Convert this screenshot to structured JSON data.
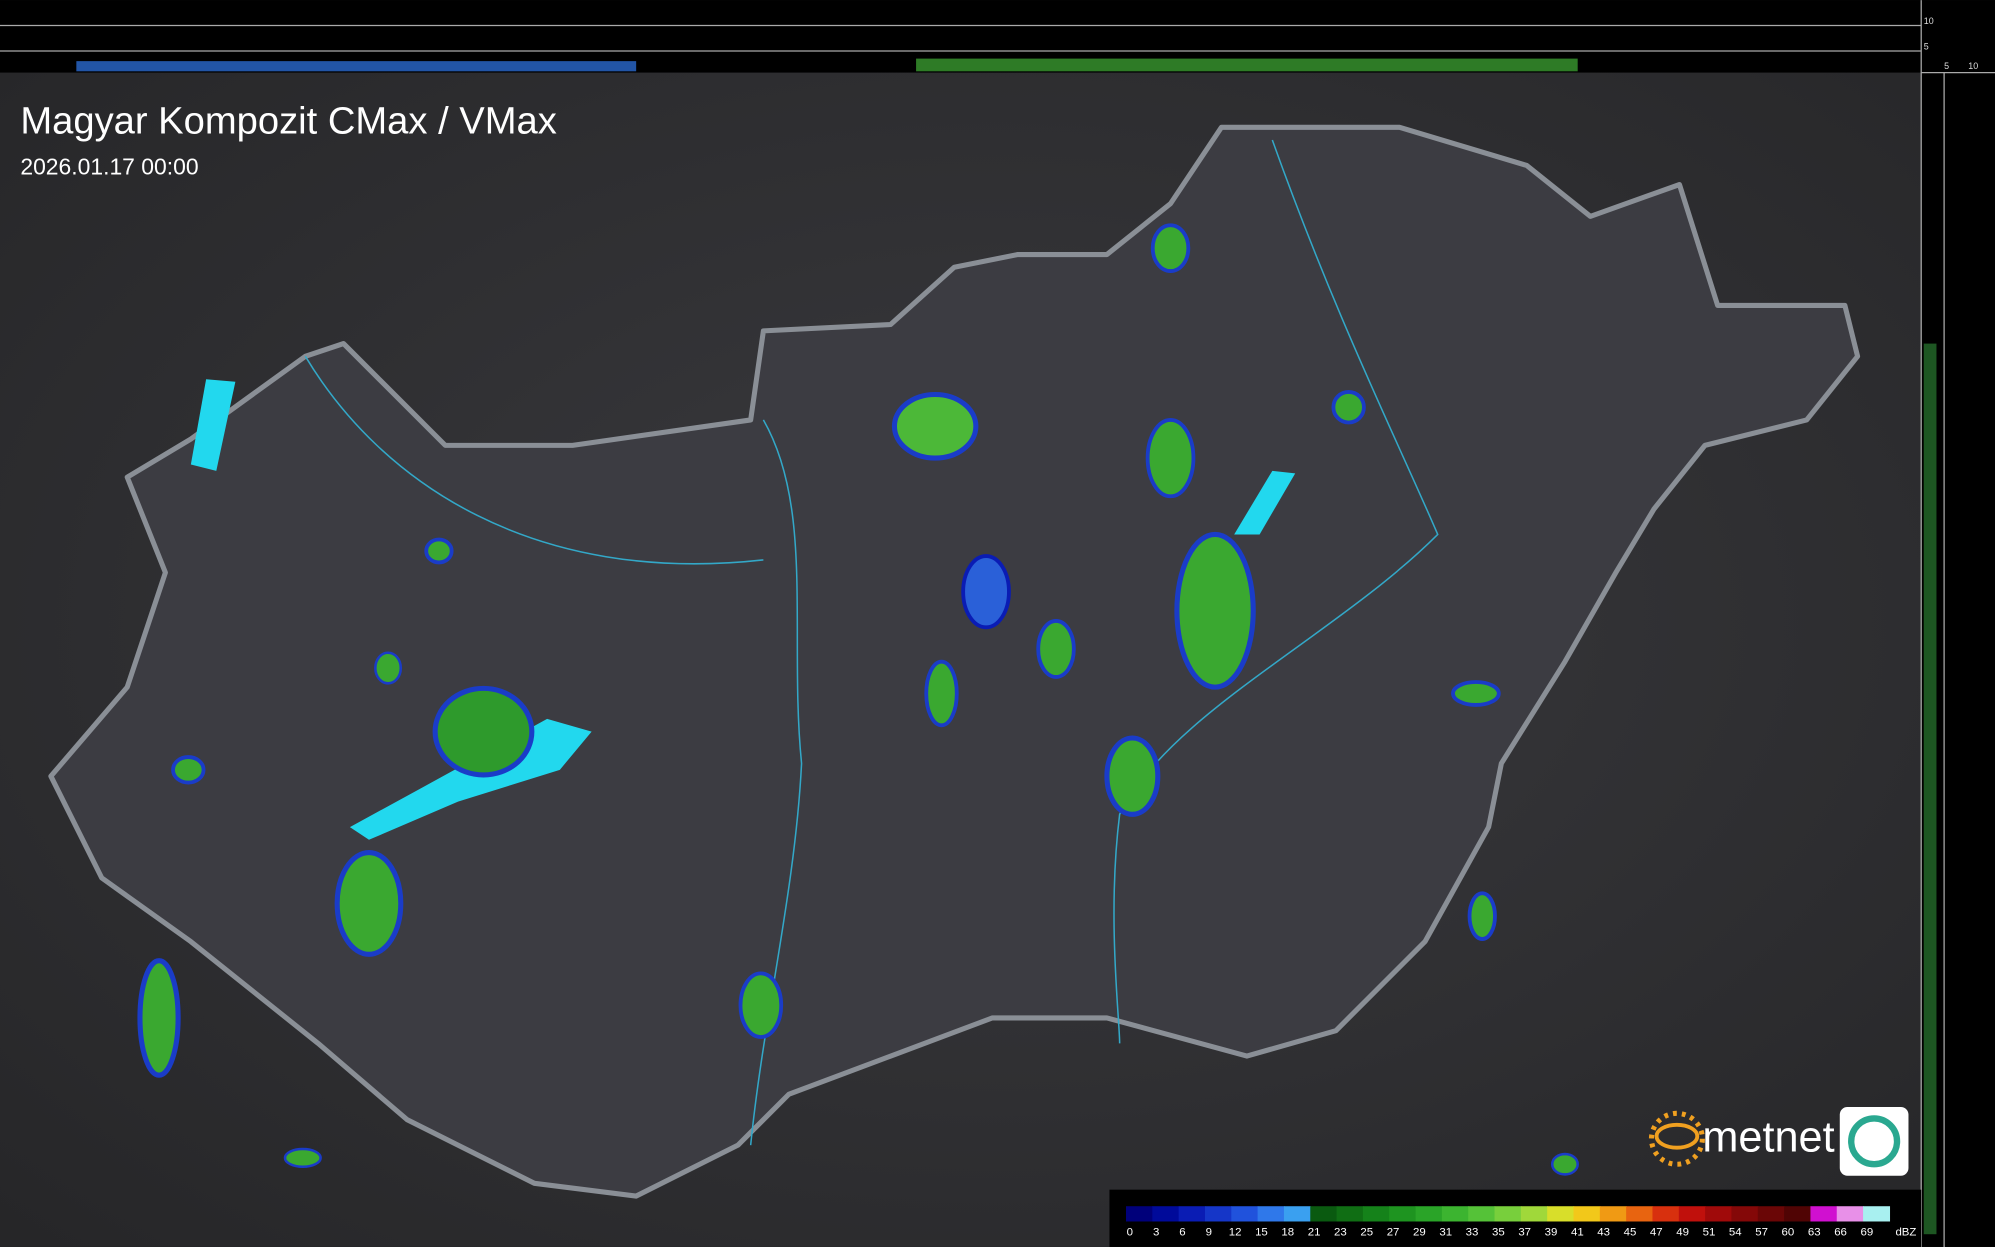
{
  "header": {
    "title": "Magyar Kompozit CMax / VMax",
    "timestamp": "2026.01.17 00:00"
  },
  "side_panel": {
    "top_labels": [
      "10",
      "5"
    ],
    "right_labels": [
      "5",
      "10"
    ]
  },
  "logo": {
    "text": "metnet"
  },
  "legend": {
    "unit": "dBZ",
    "items": [
      {
        "label": "0",
        "color": "#00007a"
      },
      {
        "label": "3",
        "color": "#000a9a"
      },
      {
        "label": "6",
        "color": "#0a1cb4"
      },
      {
        "label": "9",
        "color": "#1536c8"
      },
      {
        "label": "12",
        "color": "#2052dc"
      },
      {
        "label": "15",
        "color": "#2f78ea"
      },
      {
        "label": "18",
        "color": "#3aa0f0"
      },
      {
        "label": "21",
        "color": "#0a5a10"
      },
      {
        "label": "23",
        "color": "#106e14"
      },
      {
        "label": "25",
        "color": "#15821a"
      },
      {
        "label": "27",
        "color": "#1e9420"
      },
      {
        "label": "29",
        "color": "#2aa428"
      },
      {
        "label": "31",
        "color": "#3cb430"
      },
      {
        "label": "33",
        "color": "#55c238"
      },
      {
        "label": "35",
        "color": "#78cf3c"
      },
      {
        "label": "37",
        "color": "#a0d83a"
      },
      {
        "label": "39",
        "color": "#d8de2a"
      },
      {
        "label": "41",
        "color": "#f2c81a"
      },
      {
        "label": "43",
        "color": "#f09a14"
      },
      {
        "label": "45",
        "color": "#e86410"
      },
      {
        "label": "47",
        "color": "#d8300e"
      },
      {
        "label": "49",
        "color": "#c0100c"
      },
      {
        "label": "51",
        "color": "#a00a0a"
      },
      {
        "label": "54",
        "color": "#840808"
      },
      {
        "label": "57",
        "color": "#6a0606"
      },
      {
        "label": "60",
        "color": "#500404"
      },
      {
        "label": "63",
        "color": "#d010d0"
      },
      {
        "label": "66",
        "color": "#e890e8"
      },
      {
        "label": "69",
        "color": "#a8f0f0"
      }
    ]
  }
}
